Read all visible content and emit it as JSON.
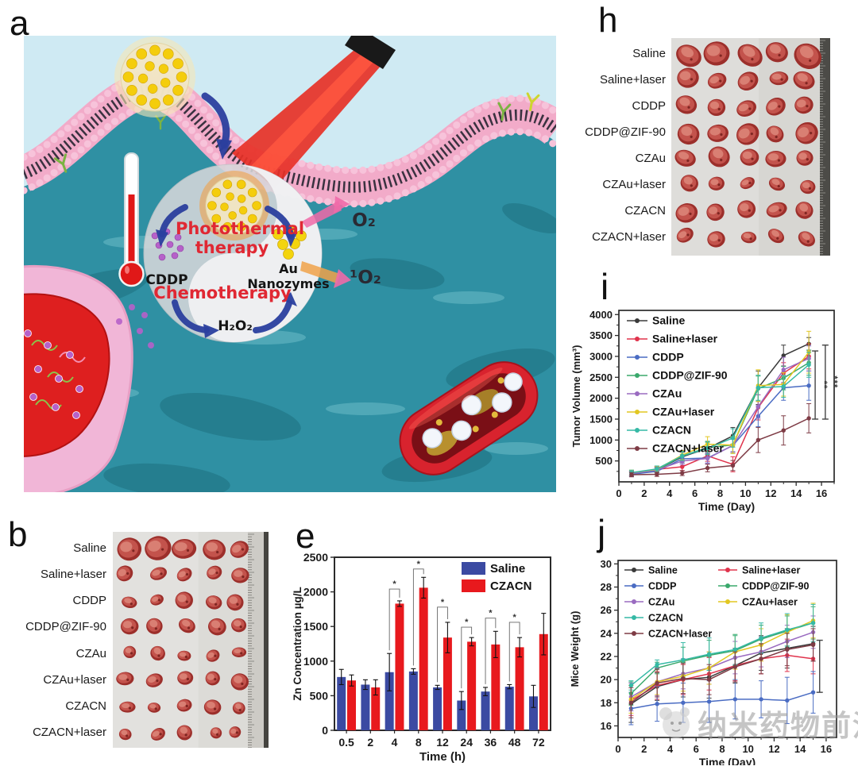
{
  "panels": {
    "a": {
      "label": "a",
      "schematic_labels": {
        "photothermal_line1": "Photothermal",
        "photothermal_line2": "therapy",
        "chemotherapy": "Chemotherapy",
        "cddp": "CDDP",
        "au_line1": "Au",
        "au_line2": "Nanozymes",
        "h2o2": "H₂O₂",
        "o2": "O₂",
        "singlet_o2": "¹O₂"
      },
      "accent_colors": {
        "therapy_text": "#e02833",
        "arrow_blue": "#2b3f9e",
        "laser_red": "#e73127"
      }
    },
    "b": {
      "label": "b",
      "row_labels": [
        "Saline",
        "Saline+laser",
        "CDDP",
        "CDDP@ZIF-90",
        "CZAu",
        "CZAu+laser",
        "CZACN",
        "CZACN+laser"
      ]
    },
    "e": {
      "label": "e"
    },
    "h": {
      "label": "h",
      "row_labels": [
        "Saline",
        "Saline+laser",
        "CDDP",
        "CDDP@ZIF-90",
        "CZAu",
        "CZAu+laser",
        "CZACN",
        "CZACN+laser"
      ]
    },
    "i": {
      "label": "i"
    },
    "j": {
      "label": "j"
    }
  },
  "watermark": {
    "text": "纳米药物前沿"
  },
  "chart_data": [
    {
      "panel": "e",
      "type": "bar",
      "title": "",
      "xlabel": "Time (h)",
      "ylabel": "Zn Concentration µg/L",
      "categories": [
        "0.5",
        "2",
        "4",
        "8",
        "12",
        "24",
        "36",
        "48",
        "72"
      ],
      "ylim": [
        0,
        2500
      ],
      "yticks": [
        0,
        500,
        1000,
        1500,
        2000,
        2500
      ],
      "legend_position": "top-right",
      "series": [
        {
          "name": "Saline",
          "color": "#3b4aa2",
          "values": [
            770,
            660,
            840,
            850,
            620,
            430,
            560,
            630,
            490
          ],
          "errors": [
            110,
            70,
            270,
            40,
            30,
            130,
            60,
            30,
            160
          ]
        },
        {
          "name": "CZACN",
          "color": "#e8191d",
          "values": [
            720,
            620,
            1830,
            2060,
            1340,
            1280,
            1240,
            1200,
            1390
          ],
          "errors": [
            80,
            110,
            40,
            150,
            220,
            60,
            190,
            140,
            300
          ]
        }
      ],
      "sig_brackets": [
        {
          "index": 2,
          "top": 2040,
          "label": "*"
        },
        {
          "index": 3,
          "top": 2330,
          "label": "*"
        },
        {
          "index": 4,
          "top": 1780,
          "label": "*"
        },
        {
          "index": 5,
          "top": 1490,
          "label": "*"
        },
        {
          "index": 6,
          "top": 1620,
          "label": "*"
        },
        {
          "index": 7,
          "top": 1560,
          "label": "*"
        }
      ]
    },
    {
      "panel": "i",
      "type": "line",
      "xlabel": "Time (Day)",
      "ylabel": "Tumor Volume (mm³)",
      "x": [
        1,
        3,
        5,
        7,
        9,
        11,
        13,
        15
      ],
      "xlim": [
        0,
        17
      ],
      "xticks": [
        0,
        2,
        4,
        6,
        8,
        10,
        12,
        14,
        16
      ],
      "ylim": [
        0,
        4100
      ],
      "yticks": [
        500,
        1000,
        1500,
        2000,
        2500,
        3000,
        3500,
        4000
      ],
      "legend_position": "top-left",
      "series": [
        {
          "name": "Saline",
          "color": "#3a3a3a",
          "values": [
            200,
            280,
            600,
            800,
            1100,
            2250,
            3020,
            3300
          ],
          "errors": [
            60,
            60,
            110,
            150,
            200,
            400,
            250,
            150
          ]
        },
        {
          "name": "Saline+laser",
          "color": "#e0334c",
          "values": [
            190,
            300,
            360,
            620,
            420,
            1780,
            2600,
            3000
          ],
          "errors": [
            50,
            60,
            90,
            130,
            180,
            300,
            250,
            300
          ]
        },
        {
          "name": "CDDP",
          "color": "#4a6cc3",
          "values": [
            180,
            250,
            550,
            570,
            870,
            1570,
            2250,
            2300
          ],
          "errors": [
            50,
            60,
            100,
            120,
            150,
            250,
            300,
            350
          ]
        },
        {
          "name": "CDDP@ZIF-90",
          "color": "#3aa86c",
          "values": [
            200,
            280,
            620,
            820,
            880,
            2230,
            2480,
            2850
          ],
          "errors": [
            50,
            60,
            100,
            150,
            200,
            300,
            280,
            300
          ]
        },
        {
          "name": "CZAu",
          "color": "#9a6bc0",
          "values": [
            200,
            280,
            500,
            560,
            870,
            1800,
            2680,
            2950
          ],
          "errors": [
            50,
            60,
            90,
            120,
            160,
            280,
            300,
            300
          ]
        },
        {
          "name": "CZAu+laser",
          "color": "#e2c722",
          "values": [
            220,
            300,
            640,
            900,
            880,
            2300,
            2330,
            3100
          ],
          "errors": [
            60,
            70,
            110,
            180,
            200,
            380,
            280,
            500
          ]
        },
        {
          "name": "CZACN",
          "color": "#35b9a5",
          "values": [
            220,
            310,
            620,
            800,
            1050,
            2250,
            2280,
            2800
          ],
          "errors": [
            60,
            70,
            110,
            150,
            220,
            300,
            260,
            300
          ]
        },
        {
          "name": "CZACN+laser",
          "color": "#7e3b45",
          "values": [
            170,
            180,
            210,
            330,
            390,
            1000,
            1230,
            1520
          ],
          "errors": [
            50,
            50,
            60,
            90,
            120,
            300,
            350,
            350
          ]
        }
      ],
      "sig_bars": [
        {
          "x": 15.5,
          "y1": 1500,
          "y2": 3130,
          "label": "**"
        },
        {
          "x": 16.3,
          "y1": 1500,
          "y2": 3270,
          "label": "***"
        }
      ]
    },
    {
      "panel": "j",
      "type": "line",
      "xlabel": "Time (Day)",
      "ylabel": "Mice Weight (g)",
      "x": [
        1,
        3,
        5,
        7,
        9,
        11,
        13,
        15
      ],
      "xlim": [
        0,
        16.8
      ],
      "xticks": [
        0,
        2,
        4,
        6,
        8,
        10,
        12,
        14,
        16
      ],
      "ylim": [
        15,
        30.3
      ],
      "yticks": [
        16,
        18,
        20,
        22,
        24,
        26,
        28,
        30
      ],
      "legend_position": "top-left-2col",
      "legend_columns": [
        [
          "Saline",
          "CDDP",
          "CZAu",
          "CZACN",
          "CZACN+laser"
        ],
        [
          "Saline+laser",
          "CDDP@ZIF-90",
          "CZAu+laser"
        ]
      ],
      "series": [
        {
          "name": "Saline",
          "color": "#3a3a3a",
          "values": [
            17.9,
            19.4,
            20.0,
            20.2,
            21.2,
            22.3,
            22.7,
            23.1
          ],
          "errors": [
            1.6,
            1.2,
            1.5,
            1.8,
            1.5,
            1.5,
            1.7,
            1.5
          ]
        },
        {
          "name": "Saline+laser",
          "color": "#e0334c",
          "values": [
            18.2,
            19.5,
            20.0,
            20.5,
            21.2,
            21.8,
            22.1,
            21.8
          ],
          "errors": [
            1.3,
            1.2,
            1.3,
            1.4,
            1.3,
            1.3,
            1.4,
            1.3
          ]
        },
        {
          "name": "CDDP",
          "color": "#4a6cc3",
          "values": [
            17.5,
            17.9,
            18.0,
            18.1,
            18.3,
            18.3,
            18.2,
            18.9
          ],
          "errors": [
            1.4,
            1.5,
            1.7,
            1.8,
            1.7,
            1.6,
            2.0,
            1.8
          ]
        },
        {
          "name": "CDDP@ZIF-90",
          "color": "#3aa86c",
          "values": [
            18.8,
            21.0,
            21.6,
            22.1,
            22.5,
            23.5,
            24.2,
            24.9
          ],
          "errors": [
            1.0,
            0.5,
            1.2,
            1.3,
            1.3,
            1.2,
            1.3,
            1.4
          ]
        },
        {
          "name": "CZAu",
          "color": "#9a6bc0",
          "values": [
            18.5,
            19.8,
            20.5,
            21.0,
            21.9,
            22.4,
            23.3,
            24.1
          ],
          "errors": [
            1.2,
            1.2,
            1.3,
            1.4,
            1.4,
            1.3,
            1.4,
            1.4
          ]
        },
        {
          "name": "CZAu+laser",
          "color": "#e2c722",
          "values": [
            18.3,
            19.8,
            20.3,
            21.0,
            22.4,
            23.0,
            24.1,
            25.1
          ],
          "errors": [
            1.2,
            1.1,
            1.3,
            1.4,
            1.5,
            1.4,
            1.5,
            1.5
          ]
        },
        {
          "name": "CZACN",
          "color": "#35b9a5",
          "values": [
            19.5,
            21.3,
            21.7,
            22.2,
            22.6,
            23.6,
            24.3,
            24.9
          ],
          "errors": [
            0.4,
            0.4,
            1.5,
            1.4,
            1.3,
            1.3,
            1.4,
            1.6
          ]
        },
        {
          "name": "CZACN+laser",
          "color": "#7e3b45",
          "values": [
            18.0,
            19.7,
            20.1,
            20.0,
            21.1,
            21.8,
            22.6,
            23.0
          ],
          "errors": [
            1.3,
            1.2,
            1.3,
            1.3,
            1.3,
            1.3,
            1.4,
            1.4
          ]
        }
      ],
      "sig_bars": [
        {
          "x": 15.5,
          "y1": 18.9,
          "y2": 23.4,
          "label": ""
        }
      ]
    }
  ]
}
